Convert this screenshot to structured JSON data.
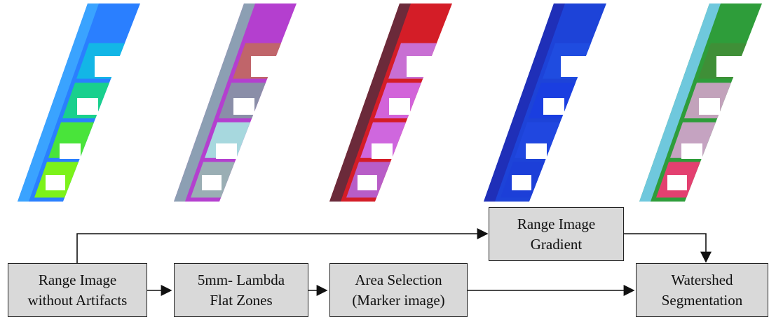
{
  "panels": [
    {
      "name": "range-image-colored",
      "colors": [
        "#2a7fff",
        "#13b6e6",
        "#19d08d",
        "#49e43a",
        "#7cf21a"
      ],
      "edge": "#3aa3ff"
    },
    {
      "name": "flat-zones-colored",
      "colors": [
        "#b43fcf",
        "#c0656a",
        "#8a8ea8",
        "#a7d8de",
        "#9aaeb4"
      ],
      "edge": "#8c9fb3"
    },
    {
      "name": "area-selection-colored",
      "colors": [
        "#d41d27",
        "#c86fd3",
        "#d263d9",
        "#cf67de",
        "#b85dc7"
      ],
      "edge": "#6b2a3a"
    },
    {
      "name": "gradient-colored",
      "colors": [
        "#1d43d8",
        "#1f4ce0",
        "#1a3ee0",
        "#2047e0",
        "#1c3fd8"
      ],
      "edge": "#1f2fb8"
    },
    {
      "name": "watershed-colored",
      "colors": [
        "#2e9d3a",
        "#3f8f37",
        "#c2a2bb",
        "#c5a3c1",
        "#e34070"
      ],
      "edge": "#6fc8dd"
    }
  ],
  "nodes": {
    "range_image": [
      "Range Image",
      "without Artifacts"
    ],
    "lambda_flat_zones": [
      "5mm- Lambda",
      "Flat Zones"
    ],
    "area_selection": [
      "Area Selection",
      "(Marker image)"
    ],
    "gradient": [
      "Range Image",
      "Gradient"
    ],
    "watershed": [
      "Watershed",
      "Segmentation"
    ]
  }
}
